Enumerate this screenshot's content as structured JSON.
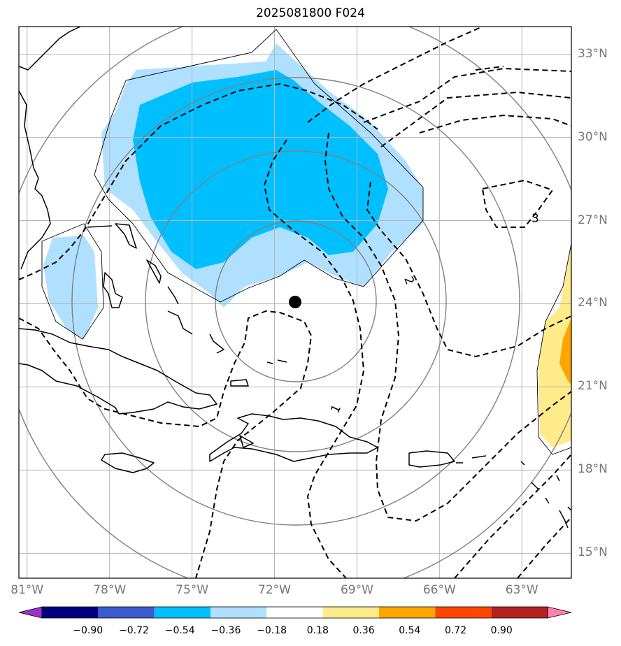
{
  "title": "2025081800 F024",
  "lon_ticks": [
    "81°W",
    "78°W",
    "75°W",
    "72°W",
    "69°W",
    "66°W",
    "63°W"
  ],
  "lat_ticks": [
    "33°N",
    "30°N",
    "27°N",
    "24°N",
    "21°N",
    "18°N",
    "15°N"
  ],
  "extent": {
    "lon_min": -81.3,
    "lon_max": -61.2,
    "lat_min": 14.1,
    "lat_max": 34.0
  },
  "storm_center": {
    "lon": -71.3,
    "lat": 24.0
  },
  "contour_labels": [
    "1",
    "2",
    "3"
  ],
  "colorbar": {
    "levels": [
      "−0.90",
      "−0.72",
      "−0.54",
      "−0.36",
      "−0.18",
      "0.18",
      "0.36",
      "0.54",
      "0.72",
      "0.90"
    ],
    "colors": [
      "#9933cc",
      "#000080",
      "#3b5bcc",
      "#00bfff",
      "#b0e0ff",
      "#ffffff",
      "#ffeb8a",
      "#ffa500",
      "#ff4500",
      "#b22222",
      "#ff80aa"
    ]
  },
  "shading_colors": {
    "light_blue": "#b0e0ff",
    "blue": "#00bfff",
    "yellow": "#ffeb8a",
    "orange": "#ffa500"
  }
}
